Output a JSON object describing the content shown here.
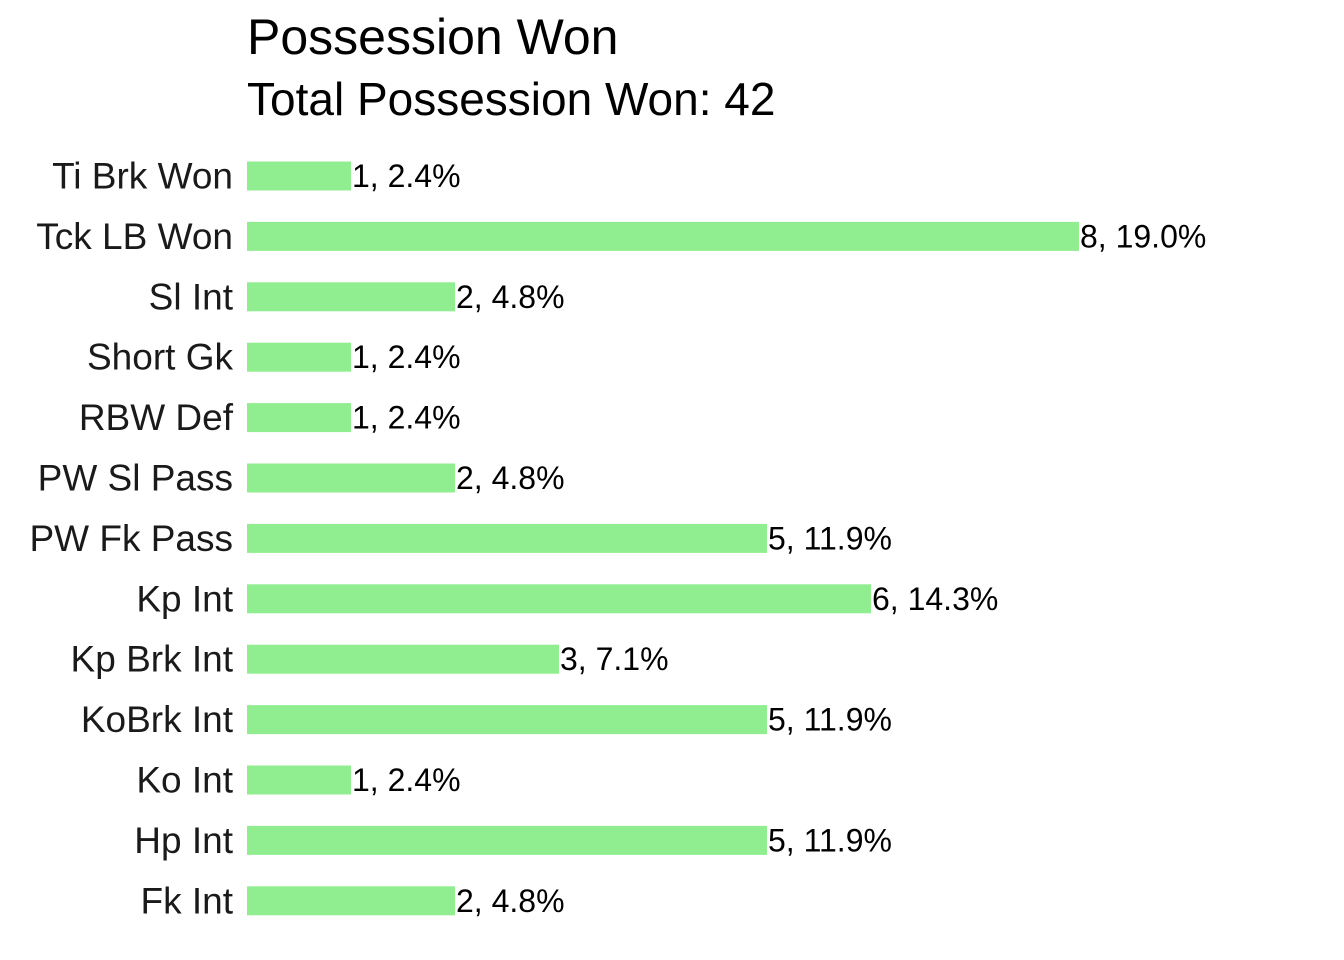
{
  "chart_data": {
    "type": "bar",
    "orientation": "horizontal",
    "title": "Possession Won",
    "subtitle": "Total Possession Won: 42",
    "bar_color": "#90EE90",
    "grid": false,
    "categories": [
      "Ti Brk Won",
      "Tck LB Won",
      "Sl Int",
      "Short Gk",
      "RBW Def",
      "PW Sl Pass",
      "PW Fk Pass",
      "Kp Int",
      "Kp Brk Int",
      "KoBrk Int",
      "Ko Int",
      "Hp Int",
      "Fk Int"
    ],
    "values": [
      1,
      8,
      2,
      1,
      1,
      2,
      5,
      6,
      3,
      5,
      1,
      5,
      2
    ],
    "labels": [
      "1, 2.4%",
      "8, 19.0%",
      "2, 4.8%",
      "1, 2.4%",
      "1, 2.4%",
      "2, 4.8%",
      "5, 11.9%",
      "6, 14.3%",
      "3, 7.1%",
      "5, 11.9%",
      "1, 2.4%",
      "5, 11.9%",
      "2, 4.8%"
    ],
    "xlim": [
      0,
      8
    ]
  }
}
